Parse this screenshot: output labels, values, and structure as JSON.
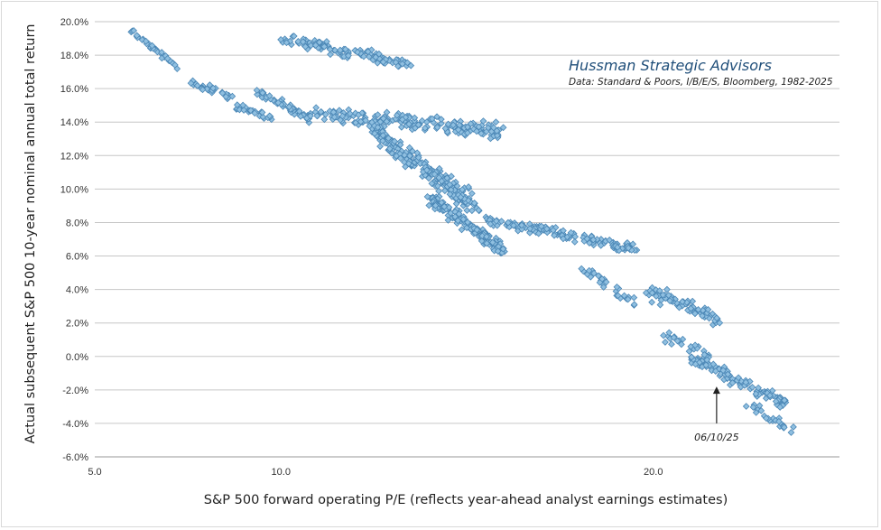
{
  "chart_data": {
    "type": "scatter",
    "title": "",
    "branding": "Hussman Strategic Advisors",
    "source": "Data: Standard & Poors, I/B/E/S, Bloomberg, 1982-2025",
    "xlabel": "S&P 500 forward operating P/E (reflects year-ahead analyst earnings estimates)",
    "ylabel": "Actual subsequent S&P 500 10-year nominal annual total return",
    "xlim": [
      5,
      25
    ],
    "ylim": [
      -6,
      20
    ],
    "x_ticks": [
      5,
      10,
      20
    ],
    "x_tick_labels": [
      "5.0",
      "10.0",
      "20.0"
    ],
    "y_ticks": [
      20,
      18,
      16,
      14,
      12,
      10,
      8,
      6,
      4,
      2,
      0,
      -2,
      -4,
      -6
    ],
    "y_tick_labels": [
      "20.0%",
      "18.0%",
      "16.0%",
      "14.0%",
      "12.0%",
      "10.0%",
      "8.0%",
      "6.0%",
      "4.0%",
      "2.0%",
      "0.0%",
      "-2.0%",
      "-4.0%",
      "-6.0%"
    ],
    "grid": "horizontal",
    "marker_color": "#8fbfe0",
    "marker_edge_color": "#4a86b5",
    "annotation": {
      "label": "06/10/25",
      "x": 21.7,
      "y_from": -4.0,
      "y_to": -1.8
    },
    "clusters": [
      {
        "x": [
          6.0,
          7.2
        ],
        "y": [
          19.4,
          17.3
        ],
        "n": 35,
        "spread": 0.25
      },
      {
        "x": [
          7.6,
          8.8
        ],
        "y": [
          16.3,
          15.4
        ],
        "n": 30,
        "spread": 0.3
      },
      {
        "x": [
          8.8,
          9.8
        ],
        "y": [
          14.9,
          14.2
        ],
        "n": 28,
        "spread": 0.25
      },
      {
        "x": [
          9.4,
          10.8
        ],
        "y": [
          15.8,
          14.2
        ],
        "n": 55,
        "spread": 0.35
      },
      {
        "x": [
          10.1,
          13.5
        ],
        "y": [
          19.0,
          17.4
        ],
        "n": 110,
        "spread": 0.5
      },
      {
        "x": [
          10.8,
          15.9
        ],
        "y": [
          14.6,
          13.4
        ],
        "n": 190,
        "spread": 0.7
      },
      {
        "x": [
          12.5,
          15.2
        ],
        "y": [
          13.5,
          9.0
        ],
        "n": 220,
        "spread": 0.8
      },
      {
        "x": [
          14.0,
          16.0
        ],
        "y": [
          9.5,
          6.3
        ],
        "n": 150,
        "spread": 0.6
      },
      {
        "x": [
          15.5,
          19.6
        ],
        "y": [
          8.2,
          6.4
        ],
        "n": 150,
        "spread": 0.4
      },
      {
        "x": [
          18.0,
          19.5
        ],
        "y": [
          5.5,
          3.2
        ],
        "n": 30,
        "spread": 0.5
      },
      {
        "x": [
          19.8,
          21.8
        ],
        "y": [
          4.0,
          2.2
        ],
        "n": 85,
        "spread": 0.6
      },
      {
        "x": [
          20.0,
          21.5
        ],
        "y": [
          1.5,
          0.0
        ],
        "n": 25,
        "spread": 0.5
      },
      {
        "x": [
          21.0,
          23.5
        ],
        "y": [
          0.0,
          -2.8
        ],
        "n": 110,
        "spread": 0.55
      },
      {
        "x": [
          22.5,
          23.8
        ],
        "y": [
          -2.8,
          -4.5
        ],
        "n": 25,
        "spread": 0.4
      }
    ]
  }
}
